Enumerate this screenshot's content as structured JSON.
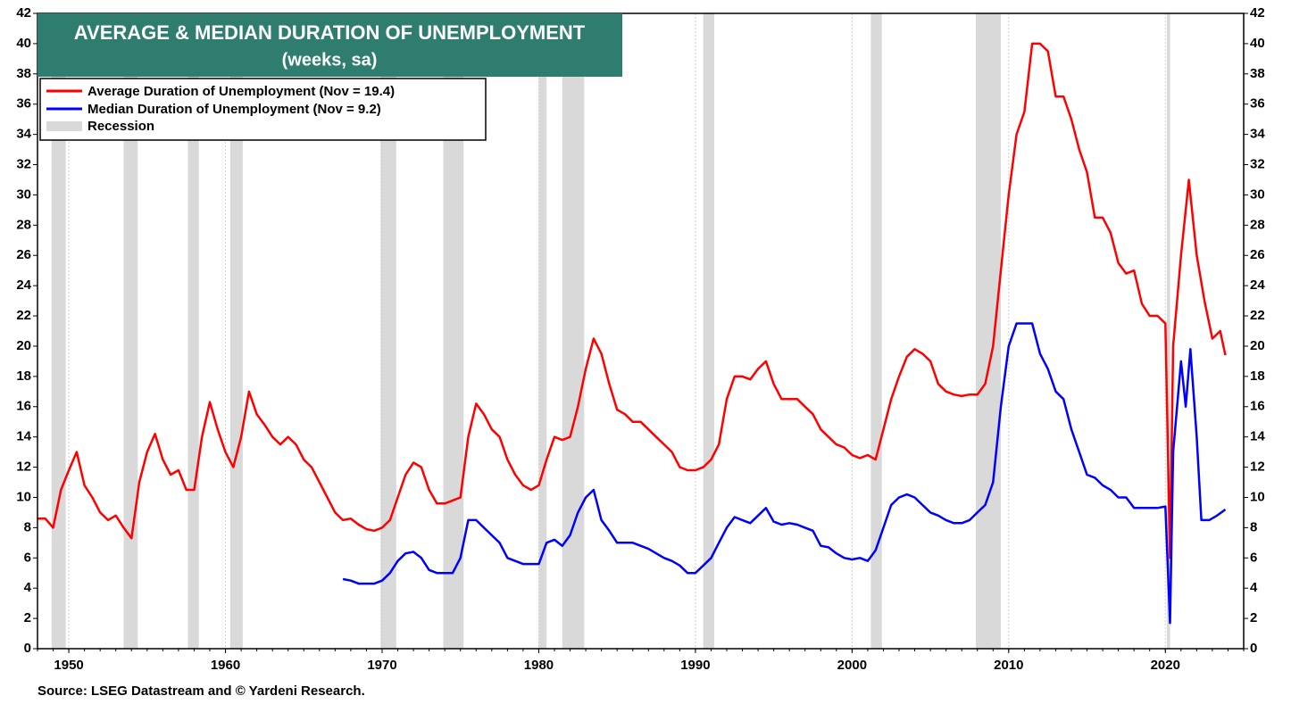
{
  "chart_data": {
    "type": "line",
    "title": "AVERAGE & MEDIAN DURATION OF UNEMPLOYMENT",
    "subtitle": "(weeks, sa)",
    "source": "Source: LSEG Datastream and © Yardeni Research.",
    "xlim": [
      1948,
      2025
    ],
    "xticks": [
      1950,
      1960,
      1970,
      1980,
      1990,
      2000,
      2010,
      2020
    ],
    "ylim": [
      0,
      42
    ],
    "yticks": [
      0,
      2,
      4,
      6,
      8,
      10,
      12,
      14,
      16,
      18,
      20,
      22,
      24,
      26,
      28,
      30,
      32,
      34,
      36,
      38,
      40,
      42
    ],
    "legend": "top-left",
    "recessions": {
      "name": "Recession",
      "color": "#d9d9d9",
      "periods": [
        [
          1948.9,
          1949.8
        ],
        [
          1953.5,
          1954.4
        ],
        [
          1957.6,
          1958.3
        ],
        [
          1960.3,
          1961.1
        ],
        [
          1969.9,
          1970.9
        ],
        [
          1973.9,
          1975.2
        ],
        [
          1980.0,
          1980.5
        ],
        [
          1981.5,
          1982.9
        ],
        [
          1990.5,
          1991.2
        ],
        [
          2001.2,
          2001.9
        ],
        [
          2007.9,
          2009.5
        ],
        [
          2020.1,
          2020.3
        ]
      ]
    },
    "series": [
      {
        "name": "Average Duration of Unemployment (Nov = 19.4)",
        "color": "#ff0000",
        "x": [
          1948.0,
          1948.5,
          1949.0,
          1949.5,
          1950.0,
          1950.5,
          1951.0,
          1951.5,
          1952.0,
          1952.5,
          1953.0,
          1953.5,
          1954.0,
          1954.5,
          1955.0,
          1955.5,
          1956.0,
          1956.5,
          1957.0,
          1957.5,
          1958.0,
          1958.5,
          1959.0,
          1959.5,
          1960.0,
          1960.5,
          1961.0,
          1961.5,
          1962.0,
          1962.5,
          1963.0,
          1963.5,
          1964.0,
          1964.5,
          1965.0,
          1965.5,
          1966.0,
          1966.5,
          1967.0,
          1967.5,
          1968.0,
          1968.5,
          1969.0,
          1969.5,
          1970.0,
          1970.5,
          1971.0,
          1971.5,
          1972.0,
          1972.5,
          1973.0,
          1973.5,
          1974.0,
          1974.5,
          1975.0,
          1975.5,
          1976.0,
          1976.5,
          1977.0,
          1977.5,
          1978.0,
          1978.5,
          1979.0,
          1979.5,
          1980.0,
          1980.5,
          1981.0,
          1981.5,
          1982.0,
          1982.5,
          1983.0,
          1983.5,
          1984.0,
          1984.5,
          1985.0,
          1985.5,
          1986.0,
          1986.5,
          1987.0,
          1987.5,
          1988.0,
          1988.5,
          1989.0,
          1989.5,
          1990.0,
          1990.5,
          1991.0,
          1991.5,
          1992.0,
          1992.5,
          1993.0,
          1993.5,
          1994.0,
          1994.5,
          1995.0,
          1995.5,
          1996.0,
          1996.5,
          1997.0,
          1997.5,
          1998.0,
          1998.5,
          1999.0,
          1999.5,
          2000.0,
          2000.5,
          2001.0,
          2001.5,
          2002.0,
          2002.5,
          2003.0,
          2003.5,
          2004.0,
          2004.5,
          2005.0,
          2005.5,
          2006.0,
          2006.5,
          2007.0,
          2007.5,
          2008.0,
          2008.5,
          2009.0,
          2009.5,
          2010.0,
          2010.5,
          2011.0,
          2011.5,
          2012.0,
          2012.5,
          2013.0,
          2013.5,
          2014.0,
          2014.5,
          2015.0,
          2015.5,
          2016.0,
          2016.5,
          2017.0,
          2017.5,
          2018.0,
          2018.5,
          2019.0,
          2019.5,
          2020.0,
          2020.3,
          2020.5,
          2021.0,
          2021.5,
          2022.0,
          2022.5,
          2023.0,
          2023.5,
          2023.83
        ],
        "values": [
          8.6,
          8.6,
          8.0,
          10.5,
          11.8,
          13.0,
          10.8,
          10.0,
          9.0,
          8.5,
          8.8,
          8.0,
          7.3,
          11.0,
          13.0,
          14.2,
          12.5,
          11.5,
          11.8,
          10.5,
          10.5,
          14.0,
          16.3,
          14.5,
          13.0,
          12.0,
          14.0,
          17.0,
          15.5,
          14.8,
          14.0,
          13.5,
          14.0,
          13.5,
          12.5,
          12.0,
          11.0,
          10.0,
          9.0,
          8.5,
          8.6,
          8.2,
          7.9,
          7.8,
          8.0,
          8.5,
          10.0,
          11.5,
          12.3,
          12.0,
          10.5,
          9.6,
          9.6,
          9.8,
          10.0,
          14.0,
          16.2,
          15.5,
          14.5,
          14.0,
          12.5,
          11.5,
          10.8,
          10.5,
          10.8,
          12.5,
          14.0,
          13.8,
          14.0,
          16.0,
          18.5,
          20.5,
          19.5,
          17.5,
          15.8,
          15.5,
          15.0,
          15.0,
          14.5,
          14.0,
          13.5,
          13.0,
          12.0,
          11.8,
          11.8,
          12.0,
          12.5,
          13.5,
          16.5,
          18.0,
          18.0,
          17.8,
          18.5,
          19.0,
          17.5,
          16.5,
          16.5,
          16.5,
          16.0,
          15.5,
          14.5,
          14.0,
          13.5,
          13.3,
          12.8,
          12.6,
          12.8,
          12.5,
          14.5,
          16.5,
          18.0,
          19.3,
          19.8,
          19.5,
          19.0,
          17.5,
          17.0,
          16.8,
          16.7,
          16.8,
          16.8,
          17.5,
          20.0,
          25.0,
          30.0,
          34.0,
          35.5,
          40.0,
          40.0,
          39.5,
          36.5,
          36.5,
          35.0,
          33.0,
          31.5,
          28.5,
          28.5,
          27.5,
          25.5,
          24.8,
          25.0,
          22.8,
          22.0,
          22.0,
          21.5,
          6.0,
          20.0,
          26.0,
          31.0,
          26.0,
          23.0,
          20.5,
          21.0,
          19.4
        ]
      },
      {
        "name": "Median Duration of Unemployment (Nov = 9.2)",
        "color": "#0000ff",
        "x": [
          1967.5,
          1968.0,
          1968.5,
          1969.0,
          1969.5,
          1970.0,
          1970.5,
          1971.0,
          1971.5,
          1972.0,
          1972.5,
          1973.0,
          1973.5,
          1974.0,
          1974.5,
          1975.0,
          1975.5,
          1976.0,
          1976.5,
          1977.0,
          1977.5,
          1978.0,
          1978.5,
          1979.0,
          1979.5,
          1980.0,
          1980.5,
          1981.0,
          1981.5,
          1982.0,
          1982.5,
          1983.0,
          1983.5,
          1984.0,
          1984.5,
          1985.0,
          1985.5,
          1986.0,
          1986.5,
          1987.0,
          1987.5,
          1988.0,
          1988.5,
          1989.0,
          1989.5,
          1990.0,
          1990.5,
          1991.0,
          1991.5,
          1992.0,
          1992.5,
          1993.0,
          1993.5,
          1994.0,
          1994.5,
          1995.0,
          1995.5,
          1996.0,
          1996.5,
          1997.0,
          1997.5,
          1998.0,
          1998.5,
          1999.0,
          1999.5,
          2000.0,
          2000.5,
          2001.0,
          2001.5,
          2002.0,
          2002.5,
          2003.0,
          2003.5,
          2004.0,
          2004.5,
          2005.0,
          2005.5,
          2006.0,
          2006.5,
          2007.0,
          2007.5,
          2008.0,
          2008.5,
          2009.0,
          2009.5,
          2010.0,
          2010.5,
          2011.0,
          2011.5,
          2012.0,
          2012.5,
          2013.0,
          2013.5,
          2014.0,
          2014.5,
          2015.0,
          2015.5,
          2016.0,
          2016.5,
          2017.0,
          2017.5,
          2018.0,
          2018.5,
          2019.0,
          2019.5,
          2020.0,
          2020.3,
          2020.5,
          2021.0,
          2021.3,
          2021.6,
          2022.0,
          2022.3,
          2022.8,
          2023.3,
          2023.83
        ],
        "values": [
          4.6,
          4.5,
          4.3,
          4.3,
          4.3,
          4.5,
          5.0,
          5.8,
          6.3,
          6.4,
          6.0,
          5.2,
          5.0,
          5.0,
          5.0,
          6.0,
          8.5,
          8.5,
          8.0,
          7.5,
          7.0,
          6.0,
          5.8,
          5.6,
          5.6,
          5.6,
          7.0,
          7.2,
          6.8,
          7.5,
          9.0,
          10.0,
          10.5,
          8.5,
          7.8,
          7.0,
          7.0,
          7.0,
          6.8,
          6.6,
          6.3,
          6.0,
          5.8,
          5.5,
          5.0,
          5.0,
          5.5,
          6.0,
          7.0,
          8.0,
          8.7,
          8.5,
          8.3,
          8.8,
          9.3,
          8.4,
          8.2,
          8.3,
          8.2,
          8.0,
          7.8,
          6.8,
          6.7,
          6.3,
          6.0,
          5.9,
          6.0,
          5.8,
          6.5,
          8.0,
          9.5,
          10.0,
          10.2,
          10.0,
          9.5,
          9.0,
          8.8,
          8.5,
          8.3,
          8.3,
          8.5,
          9.0,
          9.5,
          11.0,
          16.0,
          20.0,
          21.5,
          21.5,
          21.5,
          19.5,
          18.5,
          17.0,
          16.5,
          14.5,
          13.0,
          11.5,
          11.3,
          10.8,
          10.5,
          10.0,
          10.0,
          9.3,
          9.3,
          9.3,
          9.3,
          9.4,
          1.7,
          13.0,
          19.0,
          16.0,
          19.8,
          14.0,
          8.5,
          8.5,
          8.8,
          9.2
        ]
      }
    ]
  }
}
